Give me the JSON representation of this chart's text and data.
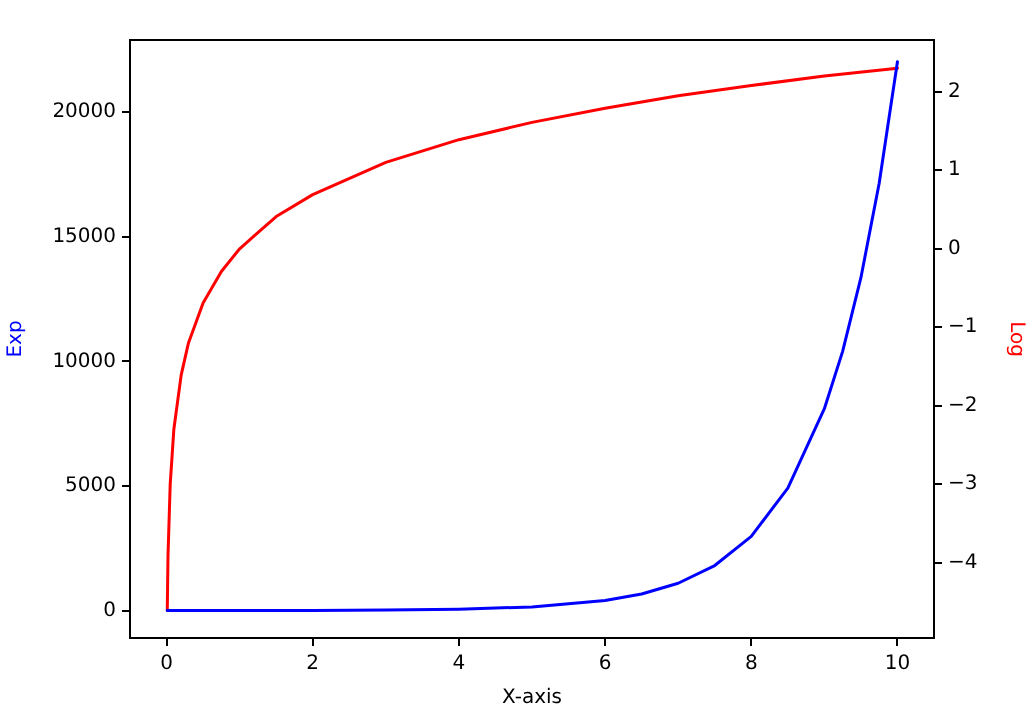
{
  "chart_data": {
    "type": "line",
    "xlabel": "X-axis",
    "ylabel": "Exp",
    "y2label": "Log",
    "xlim": [
      -0.5,
      10.5
    ],
    "xticks": [
      0,
      2,
      4,
      6,
      8,
      10
    ],
    "ylim": [
      -1100,
      22900
    ],
    "yticks": [
      0,
      5000,
      10000,
      15000,
      20000
    ],
    "y2lim": [
      -4.96,
      2.66
    ],
    "y2ticks": [
      -4,
      -3,
      -2,
      -1,
      0,
      1,
      2
    ],
    "grid": false,
    "legend": false,
    "marker": "none",
    "line_style": "solid",
    "series": [
      {
        "color": "#0000ff",
        "axis": "y",
        "x": [
          0.01,
          1,
          2,
          3,
          4,
          5,
          6,
          6.5,
          7,
          7.5,
          8,
          8.5,
          9,
          9.25,
          9.5,
          9.75,
          10
        ],
        "values": [
          1,
          2.7,
          7.4,
          20,
          55,
          148,
          403,
          665,
          1097,
          1808,
          2981,
          4915,
          8103,
          10405,
          13360,
          17154,
          22026
        ]
      },
      {
        "color": "#ff0000",
        "axis": "y2",
        "x": [
          0.01,
          0.02,
          0.05,
          0.1,
          0.2,
          0.3,
          0.5,
          0.75,
          1,
          1.5,
          2,
          3,
          4,
          5,
          6,
          7,
          8,
          9,
          10
        ],
        "values": [
          -4.61,
          -3.91,
          -3.0,
          -2.3,
          -1.61,
          -1.2,
          -0.69,
          -0.29,
          0,
          0.41,
          0.69,
          1.1,
          1.39,
          1.61,
          1.79,
          1.95,
          2.08,
          2.2,
          2.3
        ]
      }
    ]
  }
}
